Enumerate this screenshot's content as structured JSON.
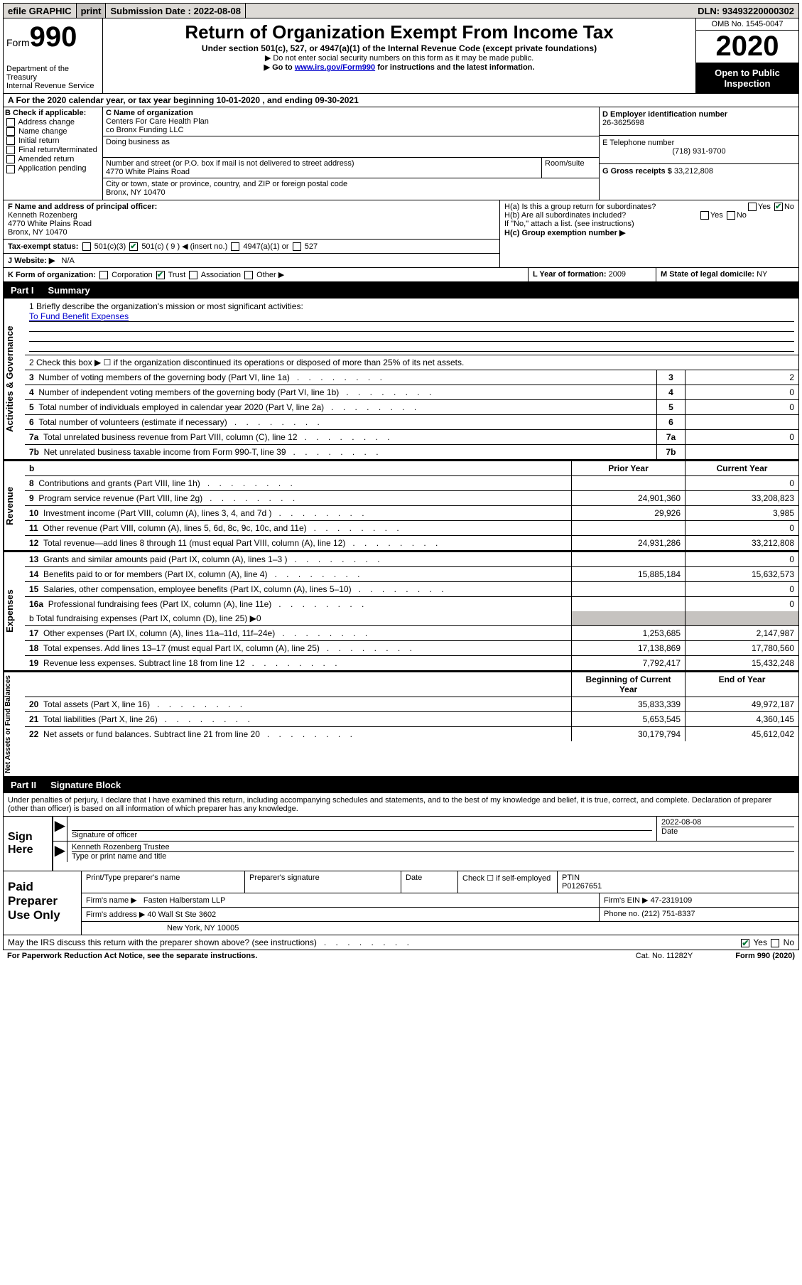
{
  "colors": {
    "bar_bg": "#dddad6",
    "btn_bg": "#c6c3c0",
    "black": "#000000",
    "link": "#0000cc",
    "check": "#0a7a3a",
    "shade": "#c6c3c0"
  },
  "topbar": {
    "efile": "efile GRAPHIC",
    "print": "print",
    "sub_label": "Submission Date :",
    "sub_date": "2022-08-08",
    "dln_label": "DLN:",
    "dln": "93493220000302"
  },
  "header": {
    "form_word": "Form",
    "form_num": "990",
    "dept": "Department of the Treasury",
    "irs": "Internal Revenue Service",
    "title": "Return of Organization Exempt From Income Tax",
    "sub1": "Under section 501(c), 527, or 4947(a)(1) of the Internal Revenue Code (except private foundations)",
    "sub2": "▶ Do not enter social security numbers on this form as it may be made public.",
    "sub3_pre": "▶ Go to ",
    "sub3_link": "www.irs.gov/Form990",
    "sub3_post": " for instructions and the latest information.",
    "omb": "OMB No. 1545-0047",
    "year": "2020",
    "open": "Open to Public Inspection"
  },
  "period": {
    "text": "A   For the 2020 calendar year, or tax year beginning 10-01-2020    , and ending 09-30-2021"
  },
  "boxB": {
    "label": "B Check if applicable:",
    "items": [
      "Address change",
      "Name change",
      "Initial return",
      "Final return/terminated",
      "Amended return",
      "Application pending"
    ]
  },
  "boxC": {
    "label": "C Name of organization",
    "name1": "Centers For Care Health Plan",
    "name2": "co Bronx Funding LLC",
    "dba_label": "Doing business as",
    "addr_label": "Number and street (or P.O. box if mail is not delivered to street address)",
    "room_label": "Room/suite",
    "addr": "4770 White Plains Road",
    "city_label": "City or town, state or province, country, and ZIP or foreign postal code",
    "city": "Bronx, NY  10470"
  },
  "boxD": {
    "label": "D Employer identification number",
    "value": "26-3625698"
  },
  "boxE": {
    "label": "E Telephone number",
    "value": "(718) 931-9700"
  },
  "boxG": {
    "label": "G Gross receipts $",
    "value": "33,212,808"
  },
  "boxF": {
    "label": "F Name and address of principal officer:",
    "name": "Kenneth Rozenberg",
    "addr": "4770 White Plains Road",
    "city": "Bronx, NY  10470"
  },
  "boxH": {
    "ha": "H(a)  Is this a group return for subordinates?",
    "hb": "H(b)  Are all subordinates included?",
    "hb_note": "If \"No,\" attach a list. (see instructions)",
    "hc": "H(c)  Group exemption number ▶",
    "yes": "Yes",
    "no": "No"
  },
  "taxexempt": {
    "label": "Tax-exempt status:",
    "opt1": "501(c)(3)",
    "opt2": "501(c) ( 9 ) ◀ (insert no.)",
    "opt3": "4947(a)(1) or",
    "opt4": "527"
  },
  "boxJ": {
    "label": "J   Website: ▶",
    "value": "N/A"
  },
  "boxK": {
    "label": "K Form of organization:",
    "opts": [
      "Corporation",
      "Trust",
      "Association",
      "Other ▶"
    ]
  },
  "boxL": {
    "label": "L Year of formation:",
    "value": "2009"
  },
  "boxM": {
    "label": "M State of legal domicile:",
    "value": "NY"
  },
  "part1": {
    "num": "Part I",
    "title": "Summary"
  },
  "vlabels": {
    "gov": "Activities & Governance",
    "rev": "Revenue",
    "exp": "Expenses",
    "net": "Net Assets or Fund Balances"
  },
  "summary": {
    "l1": "1  Briefly describe the organization's mission or most significant activities:",
    "l1_val": "To Fund Benefit Expenses",
    "l2": "2   Check this box ▶ ☐  if the organization discontinued its operations or disposed of more than 25% of its net assets.",
    "rows_single": [
      {
        "n": "3",
        "t": "Number of voting members of the governing body (Part VI, line 1a)",
        "v": "2"
      },
      {
        "n": "4",
        "t": "Number of independent voting members of the governing body (Part VI, line 1b)",
        "v": "0"
      },
      {
        "n": "5",
        "t": "Total number of individuals employed in calendar year 2020 (Part V, line 2a)",
        "v": "0"
      },
      {
        "n": "6",
        "t": "Total number of volunteers (estimate if necessary)",
        "v": ""
      },
      {
        "n": "7a",
        "t": "Total unrelated business revenue from Part VIII, column (C), line 12",
        "v": "0"
      },
      {
        "n": "7b",
        "t": "Net unrelated business taxable income from Form 990-T, line 39",
        "v": ""
      }
    ],
    "col_headers": {
      "b": "b",
      "prior": "Prior Year",
      "current": "Current Year"
    },
    "rev_rows": [
      {
        "n": "8",
        "t": "Contributions and grants (Part VIII, line 1h)",
        "p": "",
        "c": "0"
      },
      {
        "n": "9",
        "t": "Program service revenue (Part VIII, line 2g)",
        "p": "24,901,360",
        "c": "33,208,823"
      },
      {
        "n": "10",
        "t": "Investment income (Part VIII, column (A), lines 3, 4, and 7d )",
        "p": "29,926",
        "c": "3,985"
      },
      {
        "n": "11",
        "t": "Other revenue (Part VIII, column (A), lines 5, 6d, 8c, 9c, 10c, and 11e)",
        "p": "",
        "c": "0"
      },
      {
        "n": "12",
        "t": "Total revenue—add lines 8 through 11 (must equal Part VIII, column (A), line 12)",
        "p": "24,931,286",
        "c": "33,212,808"
      }
    ],
    "exp_rows": [
      {
        "n": "13",
        "t": "Grants and similar amounts paid (Part IX, column (A), lines 1–3 )",
        "p": "",
        "c": "0"
      },
      {
        "n": "14",
        "t": "Benefits paid to or for members (Part IX, column (A), line 4)",
        "p": "15,885,184",
        "c": "15,632,573"
      },
      {
        "n": "15",
        "t": "Salaries, other compensation, employee benefits (Part IX, column (A), lines 5–10)",
        "p": "",
        "c": "0"
      },
      {
        "n": "16a",
        "t": "Professional fundraising fees (Part IX, column (A), line 11e)",
        "p": "",
        "c": "0"
      }
    ],
    "l16b": "b   Total fundraising expenses (Part IX, column (D), line 25) ▶0",
    "exp_rows2": [
      {
        "n": "17",
        "t": "Other expenses (Part IX, column (A), lines 11a–11d, 11f–24e)",
        "p": "1,253,685",
        "c": "2,147,987"
      },
      {
        "n": "18",
        "t": "Total expenses. Add lines 13–17 (must equal Part IX, column (A), line 25)",
        "p": "17,138,869",
        "c": "17,780,560"
      },
      {
        "n": "19",
        "t": "Revenue less expenses. Subtract line 18 from line 12",
        "p": "7,792,417",
        "c": "15,432,248"
      }
    ],
    "net_headers": {
      "p": "Beginning of Current Year",
      "c": "End of Year"
    },
    "net_rows": [
      {
        "n": "20",
        "t": "Total assets (Part X, line 16)",
        "p": "35,833,339",
        "c": "49,972,187"
      },
      {
        "n": "21",
        "t": "Total liabilities (Part X, line 26)",
        "p": "5,653,545",
        "c": "4,360,145"
      },
      {
        "n": "22",
        "t": "Net assets or fund balances. Subtract line 21 from line 20",
        "p": "30,179,794",
        "c": "45,612,042"
      }
    ]
  },
  "part2": {
    "num": "Part II",
    "title": "Signature Block"
  },
  "sig_decl": "Under penalties of perjury, I declare that I have examined this return, including accompanying schedules and statements, and to the best of my knowledge and belief, it is true, correct, and complete. Declaration of preparer (other than officer) is based on all information of which preparer has any knowledge.",
  "sign": {
    "label": "Sign Here",
    "sig_of": "Signature of officer",
    "date": "2022-08-08",
    "date_label": "Date",
    "name": "Kenneth Rozenberg  Trustee",
    "name_label": "Type or print name and title"
  },
  "prep": {
    "label": "Paid Preparer Use Only",
    "h1": "Print/Type preparer's name",
    "h2": "Preparer's signature",
    "h3": "Date",
    "h4_pre": "Check ☐ if self-employed",
    "h5": "PTIN",
    "ptin": "P01267651",
    "firm_label": "Firm's name      ▶",
    "firm": "Fasten Halberstam LLP",
    "ein_label": "Firm's EIN ▶",
    "ein": "47-2319109",
    "addr_label": "Firm's address ▶",
    "addr": "40 Wall St Ste 3602",
    "city": "New York, NY  10005",
    "phone_label": "Phone no.",
    "phone": "(212) 751-8337"
  },
  "discuss": {
    "text": "May the IRS discuss this return with the preparer shown above? (see instructions)",
    "yes": "Yes",
    "no": "No"
  },
  "footer": {
    "left": "For Paperwork Reduction Act Notice, see the separate instructions.",
    "cat": "Cat. No. 11282Y",
    "right": "Form 990 (2020)"
  }
}
